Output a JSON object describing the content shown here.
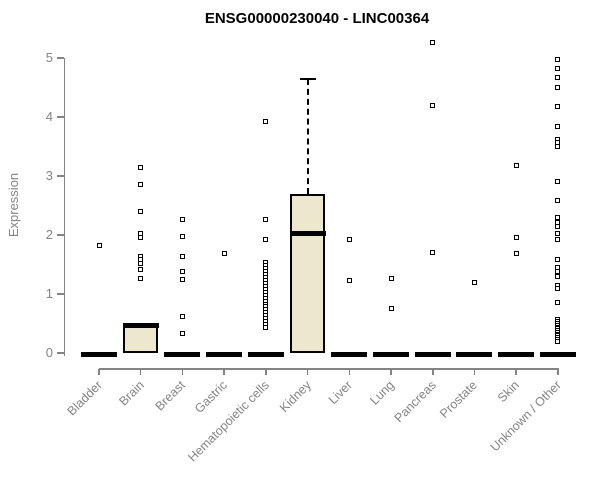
{
  "colors": {
    "box_fill": "#EDE7CD",
    "box_border": "#000000",
    "axis": "#848484",
    "title": "#000000",
    "background": "#FFFFFF"
  },
  "chart_data": {
    "type": "boxplot",
    "title": "ENSG00000230040 - LINC00364",
    "xlabel": "",
    "ylabel": "Expression",
    "ylim": [
      0,
      5
    ],
    "yticks": [
      0,
      1,
      2,
      3,
      4,
      5
    ],
    "grid": false,
    "legend": "none",
    "categories": [
      "Bladder",
      "Brain",
      "Breast",
      "Gastric",
      "Hematopoietic cells",
      "Kidney",
      "Liver",
      "Lung",
      "Pancreas",
      "Prostate",
      "Skin",
      "Unknown / Other"
    ],
    "series": [
      {
        "category": "Bladder",
        "q1": 0,
        "median": 0,
        "q3": 0,
        "whisker_low": 0,
        "whisker_high": 0,
        "outliers": [
          1.83
        ]
      },
      {
        "category": "Brain",
        "q1": 0,
        "median": 0.47,
        "q3": 0.5,
        "whisker_low": 0,
        "whisker_high": 0.5,
        "outliers": [
          3.14,
          2.85,
          2.39,
          2.03,
          1.96,
          1.64,
          1.58,
          1.52,
          1.42,
          1.27
        ]
      },
      {
        "category": "Breast",
        "q1": 0,
        "median": 0,
        "q3": 0,
        "whisker_low": 0,
        "whisker_high": 0,
        "outliers": [
          2.27,
          1.97,
          1.63,
          1.38,
          1.25,
          0.62,
          0.33
        ]
      },
      {
        "category": "Gastric",
        "q1": 0,
        "median": 0,
        "q3": 0,
        "whisker_low": 0,
        "whisker_high": 0,
        "outliers": [
          1.69
        ]
      },
      {
        "category": "Hematopoietic cells",
        "q1": 0,
        "median": 0,
        "q3": 0,
        "whisker_low": 0,
        "whisker_high": 0,
        "outliers": [
          3.93,
          2.27,
          1.92,
          1.53,
          1.48,
          1.43,
          1.38,
          1.33,
          1.28,
          1.23,
          1.18,
          1.13,
          1.08,
          1.03,
          0.98,
          0.93,
          0.88,
          0.83,
          0.78,
          0.73,
          0.68,
          0.63,
          0.58,
          0.53,
          0.48,
          0.43
        ]
      },
      {
        "category": "Kidney",
        "q1": 0,
        "median": 2.03,
        "q3": 2.7,
        "whisker_low": 0,
        "whisker_high": 4.65,
        "outliers": []
      },
      {
        "category": "Liver",
        "q1": 0,
        "median": 0,
        "q3": 0,
        "whisker_low": 0,
        "whisker_high": 0,
        "outliers": [
          1.92,
          1.23
        ]
      },
      {
        "category": "Lung",
        "q1": 0,
        "median": 0,
        "q3": 0,
        "whisker_low": 0,
        "whisker_high": 0,
        "outliers": [
          1.27,
          0.76
        ]
      },
      {
        "category": "Pancreas",
        "q1": 0,
        "median": 0,
        "q3": 0,
        "whisker_low": 0,
        "whisker_high": 0,
        "outliers": [
          5.27,
          4.2,
          1.71
        ]
      },
      {
        "category": "Prostate",
        "q1": 0,
        "median": 0,
        "q3": 0,
        "whisker_low": 0,
        "whisker_high": 0,
        "outliers": [
          1.19
        ]
      },
      {
        "category": "Skin",
        "q1": 0,
        "median": 0,
        "q3": 0,
        "whisker_low": 0,
        "whisker_high": 0,
        "outliers": [
          3.17,
          1.95,
          1.69
        ]
      },
      {
        "category": "Unknown / Other",
        "q1": 0,
        "median": 0,
        "q3": 0,
        "whisker_low": 0,
        "whisker_high": 0,
        "outliers": [
          4.97,
          4.83,
          4.67,
          4.5,
          4.17,
          3.84,
          3.62,
          3.56,
          3.5,
          2.9,
          2.58,
          2.29,
          2.22,
          2.15,
          2.03,
          1.92,
          1.59,
          1.45,
          1.38,
          1.3,
          1.14,
          1.1,
          0.85,
          0.56,
          0.53,
          0.5,
          0.47,
          0.44,
          0.41,
          0.38,
          0.35,
          0.32,
          0.29,
          0.26,
          0.23,
          0.2
        ]
      }
    ]
  }
}
